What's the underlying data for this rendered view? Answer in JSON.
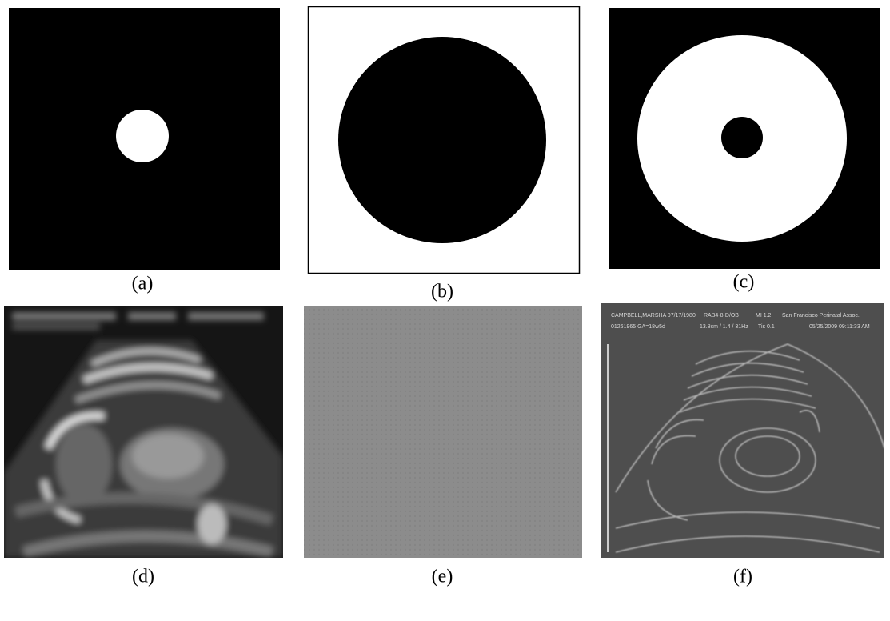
{
  "panels": [
    {
      "label": "(a)"
    },
    {
      "label": "(b)"
    },
    {
      "label": "(c)"
    },
    {
      "label": "(d)"
    },
    {
      "label": "(e)"
    },
    {
      "label": "(f)"
    }
  ],
  "overlay_text": [
    "CAMPBELL,MARSHA 07/17/1980",
    "RAB4-8-D/OB",
    "MI 1.2",
    "San Francisco Perinatal Assoc.",
    "01261965 GA=18w5d",
    "13.8cm / 1.4 / 31Hz",
    "Tis 0.1",
    "05/25/2009 09:11:33 AM"
  ]
}
